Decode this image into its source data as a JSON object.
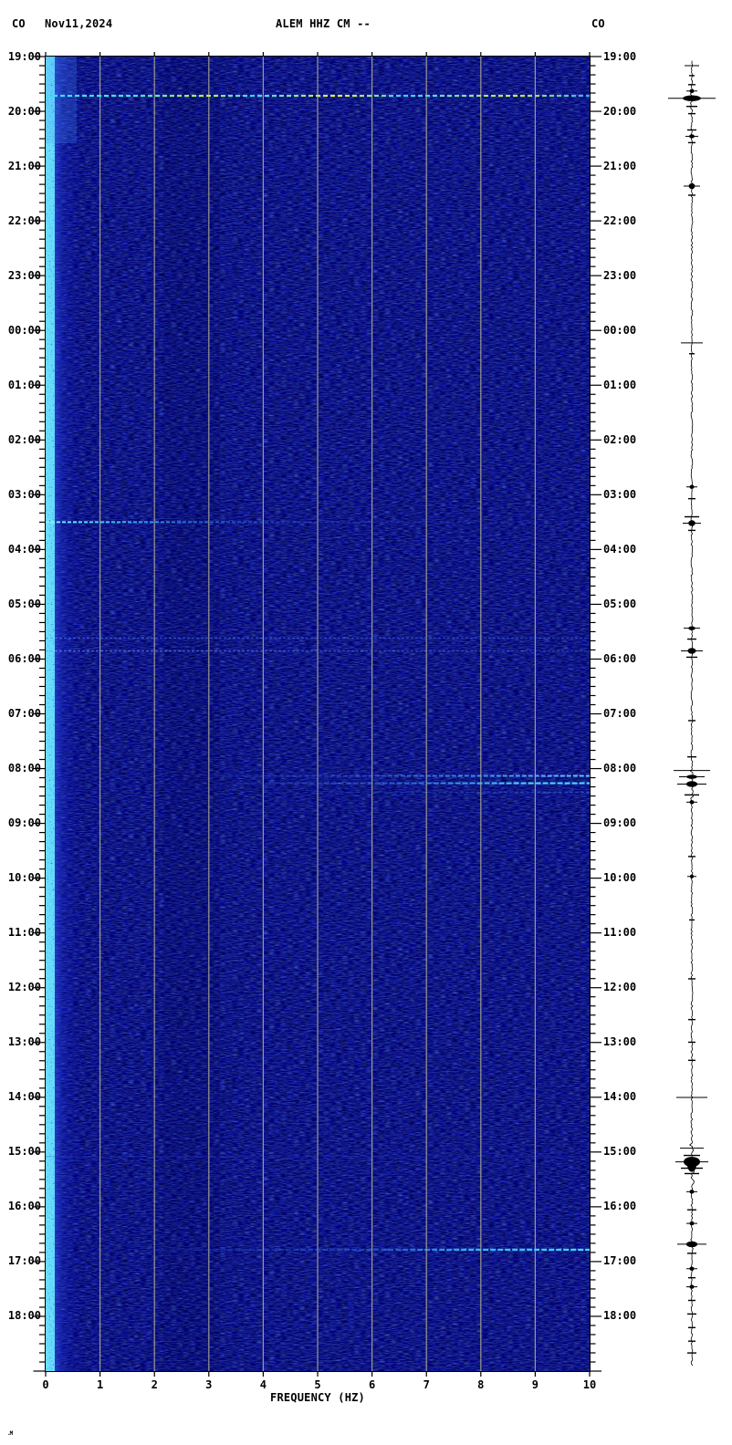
{
  "header": {
    "network_left": "CO",
    "date": "Nov11,2024",
    "station_title": "ALEM HHZ CM --",
    "network_right": "CO"
  },
  "corner_mark": ".M",
  "chart_data": {
    "type": "heatmap",
    "title": "ALEM HHZ CM -- spectrogram, 24 hours starting 19:00 Nov11,2024",
    "xlabel": "FREQUENCY (HZ)",
    "xlim": [
      0,
      10
    ],
    "x_ticks": [
      "0",
      "1",
      "2",
      "3",
      "4",
      "5",
      "6",
      "7",
      "8",
      "9",
      "10"
    ],
    "grid": "vertical gray lines at 1..9 Hz",
    "time_span_hours": 24,
    "minor_tick_minutes": 10,
    "y_time_labels": [
      "19:00",
      "20:00",
      "21:00",
      "22:00",
      "23:00",
      "00:00",
      "01:00",
      "02:00",
      "03:00",
      "04:00",
      "05:00",
      "06:00",
      "07:00",
      "08:00",
      "09:00",
      "10:00",
      "11:00",
      "12:00",
      "13:00",
      "14:00",
      "15:00",
      "16:00",
      "17:00",
      "18:00"
    ],
    "colors": {
      "background": "#0101ae",
      "grid": "#9a9a90",
      "frame": "#000000",
      "low_freq_band": "#4b7dff",
      "band_speckle": "#2ee9ff",
      "trace": "#000000"
    },
    "bands": [
      {
        "hz": [
          0.0,
          0.15
        ],
        "style": "bright cyan speckled strip, full height"
      },
      {
        "hz": [
          0.1,
          0.7
        ],
        "style": "light blue glow fading right, full height"
      },
      {
        "hz": [
          2.15,
          3.2
        ],
        "style": "subtle darker mottled column"
      }
    ],
    "events": [
      {
        "time": "19:43",
        "m": 43,
        "hz": [
          0,
          10
        ],
        "w": 2.2,
        "dash": "5 3",
        "desc": "bright dashed cyan line with yellow-green hotspots, full width",
        "stops": [
          [
            "0%",
            "#35e0ff",
            1
          ],
          [
            "18%",
            "#49e8c8",
            1
          ],
          [
            "30%",
            "#b8f24e",
            1
          ],
          [
            "38%",
            "#35d8ff",
            1
          ],
          [
            "54%",
            "#e8f53a",
            1
          ],
          [
            "66%",
            "#35d0ff",
            1
          ],
          [
            "86%",
            "#c8f04e",
            1
          ],
          [
            "100%",
            "#2db0ff",
            1
          ]
        ]
      },
      {
        "time": "03:30",
        "m": 510,
        "hz": [
          0,
          10
        ],
        "w": 2,
        "dash": "4 2",
        "desc": "cyan line strongest at low frequency, fading right",
        "stops": [
          [
            "0%",
            "#8df4ff",
            1
          ],
          [
            "10%",
            "#45d8ff",
            0.95
          ],
          [
            "30%",
            "#2e8aff",
            0.6
          ],
          [
            "48%",
            "#2a63ff",
            0.3
          ],
          [
            "70%",
            "#2a63ff",
            0.18
          ],
          [
            "100%",
            "#2a63ff",
            0.1
          ]
        ]
      },
      {
        "time": "05:37",
        "m": 637,
        "hz": [
          0,
          10
        ],
        "w": 1.5,
        "dash": "3 2",
        "desc": "faint light-blue line full width",
        "stops": [
          [
            "0%",
            "#4f7bff",
            0.55
          ],
          [
            "100%",
            "#4f7bff",
            0.35
          ]
        ]
      },
      {
        "time": "05:51",
        "m": 651,
        "hz": [
          0,
          10
        ],
        "w": 1.5,
        "dash": "3 2",
        "desc": "faint light-blue line full width",
        "stops": [
          [
            "0%",
            "#6f9bff",
            0.6
          ],
          [
            "100%",
            "#4f7bff",
            0.3
          ]
        ]
      },
      {
        "time": "08:08",
        "m": 788,
        "hz": [
          3,
          10
        ],
        "w": 2,
        "dash": "5 2",
        "desc": "blue line brightening toward high frequency",
        "stops": [
          [
            "0%",
            "#2a63ff",
            0.15
          ],
          [
            "40%",
            "#3f7bff",
            0.5
          ],
          [
            "75%",
            "#52b8ff",
            0.8
          ],
          [
            "100%",
            "#5fd4ff",
            0.95
          ]
        ]
      },
      {
        "time": "08:16",
        "m": 796,
        "hz": [
          3.5,
          10
        ],
        "w": 2.2,
        "dash": "6 2",
        "desc": "cyan-blue line brightening toward high frequency",
        "stops": [
          [
            "0%",
            "#2a63ff",
            0.2
          ],
          [
            "45%",
            "#3f8bff",
            0.6
          ],
          [
            "80%",
            "#45e0ff",
            0.95
          ],
          [
            "100%",
            "#45e0ff",
            1
          ]
        ]
      },
      {
        "time": "08:26",
        "m": 806,
        "hz": [
          5,
          10
        ],
        "w": 1.5,
        "dash": "4 2",
        "desc": "faint blue line high frequency",
        "stops": [
          [
            "0%",
            "#2a63ff",
            0.15
          ],
          [
            "100%",
            "#3f7bff",
            0.5
          ]
        ]
      },
      {
        "time": "15:05",
        "m": 1205,
        "hz": [
          0,
          10
        ],
        "w": 1.2,
        "dash": "",
        "desc": "very faint line full width",
        "stops": [
          [
            "0%",
            "#223bd8",
            0.35
          ],
          [
            "100%",
            "#223bd8",
            0.25
          ]
        ]
      },
      {
        "time": "16:47",
        "m": 1307,
        "hz": [
          2,
          10
        ],
        "w": 2.4,
        "dash": "6 2",
        "desc": "bright cyan line at high frequency, fading left",
        "stops": [
          [
            "0%",
            "#2a63ff",
            0.12
          ],
          [
            "50%",
            "#2f8bff",
            0.45
          ],
          [
            "72%",
            "#38c8ff",
            0.9
          ],
          [
            "100%",
            "#40dcff",
            1
          ]
        ]
      }
    ],
    "side_trace": {
      "desc": "black vertical helicorder trace, amplitude spikes at event times",
      "spikes": [
        [
          5,
          8,
          "line"
        ],
        [
          16,
          3,
          "t"
        ],
        [
          26,
          4,
          "t"
        ],
        [
          33,
          6,
          "blob"
        ],
        [
          41,
          26,
          "lineblob"
        ],
        [
          50,
          6,
          "t"
        ],
        [
          58,
          4,
          "t"
        ],
        [
          76,
          5,
          "t"
        ],
        [
          83,
          7,
          "blob"
        ],
        [
          90,
          4,
          "t"
        ],
        [
          138,
          9,
          "lineblob"
        ],
        [
          148,
          4,
          "t"
        ],
        [
          311,
          12,
          "line"
        ],
        [
          323,
          3,
          "t"
        ],
        [
          470,
          6,
          "blob"
        ],
        [
          483,
          4,
          "t"
        ],
        [
          503,
          8,
          "t"
        ],
        [
          510,
          10,
          "lineblob"
        ],
        [
          518,
          4,
          "t"
        ],
        [
          626,
          9,
          "blob"
        ],
        [
          638,
          5,
          "t"
        ],
        [
          651,
          12,
          "lineblob"
        ],
        [
          658,
          6,
          "t"
        ],
        [
          728,
          4,
          "t"
        ],
        [
          768,
          5,
          "t"
        ],
        [
          783,
          20,
          "line"
        ],
        [
          790,
          14,
          "blob"
        ],
        [
          798,
          16,
          "lineblob"
        ],
        [
          810,
          8,
          "t"
        ],
        [
          818,
          6,
          "blob"
        ],
        [
          878,
          4,
          "t"
        ],
        [
          900,
          5,
          "blob"
        ],
        [
          948,
          3,
          "t"
        ],
        [
          1013,
          4,
          "t"
        ],
        [
          1058,
          4,
          "t"
        ],
        [
          1083,
          4,
          "t"
        ],
        [
          1103,
          4,
          "t"
        ],
        [
          1144,
          17,
          "line"
        ],
        [
          1200,
          13,
          "line"
        ],
        [
          1208,
          9,
          "t"
        ],
        [
          1215,
          18,
          "bigblob"
        ],
        [
          1222,
          12,
          "t"
        ],
        [
          1228,
          8,
          "t"
        ],
        [
          1248,
          6,
          "blob"
        ],
        [
          1268,
          5,
          "t"
        ],
        [
          1283,
          6,
          "blob"
        ],
        [
          1306,
          16,
          "lineblob"
        ],
        [
          1316,
          5,
          "t"
        ],
        [
          1333,
          6,
          "blob"
        ],
        [
          1343,
          4,
          "t"
        ],
        [
          1353,
          6,
          "blob"
        ],
        [
          1368,
          4,
          "t"
        ],
        [
          1383,
          5,
          "t"
        ],
        [
          1398,
          4,
          "t"
        ],
        [
          1413,
          4,
          "t"
        ],
        [
          1426,
          5,
          "t"
        ]
      ],
      "noisy_zones": [
        {
          "m1": 30,
          "m2": 55,
          "amp": 1.6
        },
        {
          "m1": 780,
          "m2": 815,
          "amp": 1.8
        },
        {
          "m1": 1195,
          "m2": 1240,
          "amp": 2.6
        },
        {
          "m1": 1300,
          "m2": 1312,
          "amp": 1.8
        }
      ]
    }
  }
}
